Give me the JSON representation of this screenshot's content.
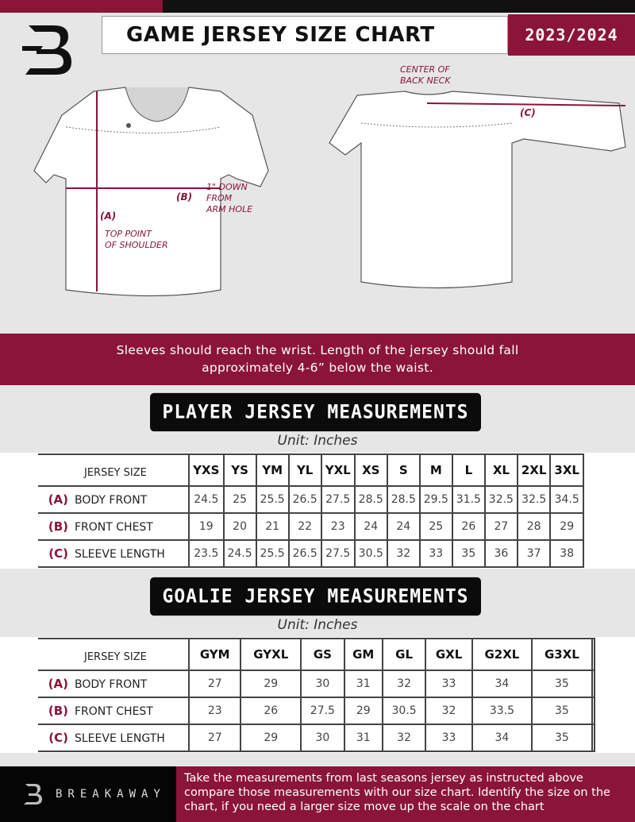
{
  "header": {
    "title": "GAME JERSEY SIZE CHART",
    "season": "2023/2024",
    "logo": "B"
  },
  "diagram": {
    "front": {
      "label_a": "(A)",
      "label_b": "(B)",
      "note_a": "TOP POINT\nOF SHOULDER",
      "note_b": "1\" DOWN\nFROM\nARM HOLE"
    },
    "back": {
      "label_c": "(C)",
      "note_c": "CENTER OF\nBACK NECK"
    }
  },
  "instructions": {
    "line1": "Sleeves should reach the wrist. Length of the jersey should fall",
    "line2": "approximately 4-6” below the waist."
  },
  "player": {
    "title": "PLAYER JERSEY MEASUREMENTS",
    "unit": "Unit: Inches",
    "size_label": "JERSEY SIZE",
    "sizes": [
      "YXS",
      "YS",
      "YM",
      "YL",
      "YXL",
      "XS",
      "S",
      "M",
      "L",
      "XL",
      "2XL",
      "3XL"
    ],
    "rows": [
      {
        "letter": "(A)",
        "name": "BODY FRONT",
        "values": [
          "24.5",
          "25",
          "25.5",
          "26.5",
          "27.5",
          "28.5",
          "28.5",
          "29.5",
          "31.5",
          "32.5",
          "32.5",
          "34.5"
        ]
      },
      {
        "letter": "(B)",
        "name": "FRONT CHEST",
        "values": [
          "19",
          "20",
          "21",
          "22",
          "23",
          "24",
          "24",
          "25",
          "26",
          "27",
          "28",
          "29"
        ]
      },
      {
        "letter": "(C)",
        "name": "SLEEVE LENGTH",
        "values": [
          "23.5",
          "24.5",
          "25.5",
          "26.5",
          "27.5",
          "30.5",
          "32",
          "33",
          "35",
          "36",
          "37",
          "38"
        ]
      }
    ]
  },
  "goalie": {
    "title": "GOALIE JERSEY MEASUREMENTS",
    "unit": "Unit: Inches",
    "size_label": "JERSEY SIZE",
    "sizes": [
      "GYM",
      "GYXL",
      "GS",
      "GM",
      "GL",
      "GXL",
      "G2XL",
      "G3XL",
      ""
    ],
    "rows": [
      {
        "letter": "(A)",
        "name": "BODY FRONT",
        "values": [
          "27",
          "29",
          "30",
          "31",
          "32",
          "33",
          "34",
          "35",
          ""
        ]
      },
      {
        "letter": "(B)",
        "name": "FRONT CHEST",
        "values": [
          "23",
          "26",
          "27.5",
          "29",
          "30.5",
          "32",
          "33.5",
          "35",
          ""
        ]
      },
      {
        "letter": "(C)",
        "name": "SLEEVE LENGTH",
        "values": [
          "27",
          "29",
          "30",
          "31",
          "32",
          "33",
          "34",
          "35",
          ""
        ]
      }
    ]
  },
  "footer": {
    "brand": "BREAKAWAY",
    "text": "Take the measurements from last seasons jersey as instructed above compare those measurements  with our size chart. Identify the size on the chart, if you need a larger size move up the scale on the chart"
  },
  "colors": {
    "accent": "#8a1538",
    "dark": "#0b0b0b",
    "background": "#e6e6e7"
  }
}
